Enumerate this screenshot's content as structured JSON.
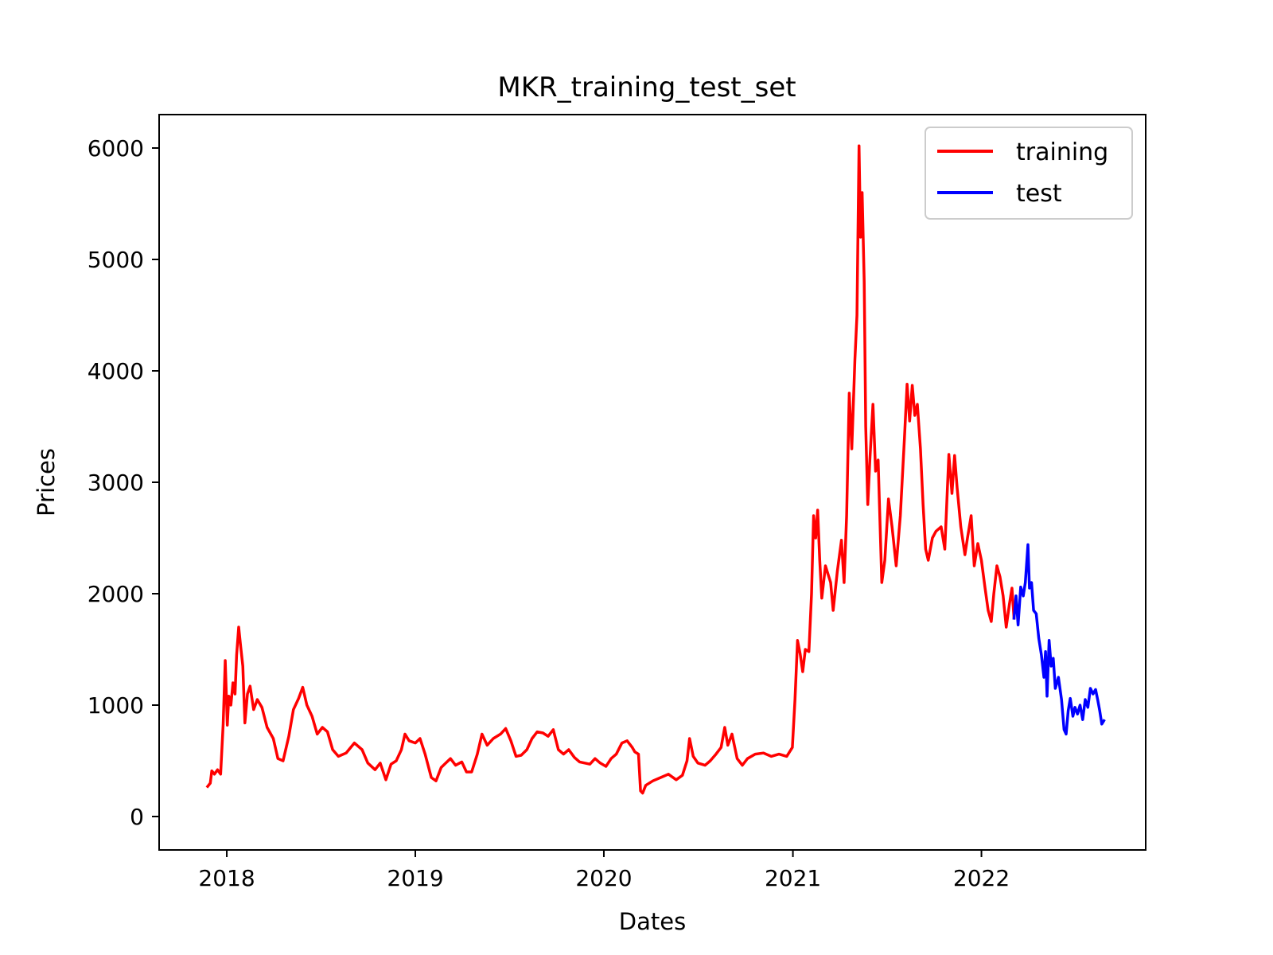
{
  "chart_data": {
    "type": "line",
    "title": "MKR_training_test_set",
    "xlabel": "Dates",
    "ylabel": "Prices",
    "xlim": [
      "2017-08-23",
      "2022-11-15"
    ],
    "ylim": [
      -300,
      6300
    ],
    "x_ticks": [
      {
        "date": "2018-01-01",
        "label": "2018"
      },
      {
        "date": "2019-01-01",
        "label": "2019"
      },
      {
        "date": "2020-01-01",
        "label": "2020"
      },
      {
        "date": "2021-01-01",
        "label": "2021"
      },
      {
        "date": "2022-01-01",
        "label": "2022"
      }
    ],
    "y_ticks": [
      {
        "value": 0,
        "label": "0"
      },
      {
        "value": 1000,
        "label": "1000"
      },
      {
        "value": 2000,
        "label": "2000"
      },
      {
        "value": 3000,
        "label": "3000"
      },
      {
        "value": 4000,
        "label": "4000"
      },
      {
        "value": 5000,
        "label": "5000"
      },
      {
        "value": 6000,
        "label": "6000"
      }
    ],
    "grid": false,
    "legend_position": "top-right",
    "series": [
      {
        "name": "training",
        "color": "#ff0000",
        "points": [
          [
            "2017-11-25",
            270
          ],
          [
            "2017-11-30",
            300
          ],
          [
            "2017-12-03",
            410
          ],
          [
            "2017-12-08",
            380
          ],
          [
            "2017-12-14",
            420
          ],
          [
            "2017-12-20",
            380
          ],
          [
            "2017-12-25",
            830
          ],
          [
            "2017-12-29",
            1400
          ],
          [
            "2018-01-02",
            820
          ],
          [
            "2018-01-05",
            1080
          ],
          [
            "2018-01-09",
            1000
          ],
          [
            "2018-01-13",
            1200
          ],
          [
            "2018-01-17",
            1100
          ],
          [
            "2018-01-20",
            1450
          ],
          [
            "2018-01-24",
            1700
          ],
          [
            "2018-01-28",
            1520
          ],
          [
            "2018-02-01",
            1350
          ],
          [
            "2018-02-05",
            840
          ],
          [
            "2018-02-10",
            1100
          ],
          [
            "2018-02-15",
            1170
          ],
          [
            "2018-02-22",
            960
          ],
          [
            "2018-03-01",
            1050
          ],
          [
            "2018-03-10",
            980
          ],
          [
            "2018-03-20",
            800
          ],
          [
            "2018-04-01",
            700
          ],
          [
            "2018-04-10",
            520
          ],
          [
            "2018-04-20",
            500
          ],
          [
            "2018-05-01",
            720
          ],
          [
            "2018-05-10",
            960
          ],
          [
            "2018-05-20",
            1060
          ],
          [
            "2018-05-28",
            1160
          ],
          [
            "2018-06-05",
            1000
          ],
          [
            "2018-06-15",
            900
          ],
          [
            "2018-06-25",
            740
          ],
          [
            "2018-07-05",
            800
          ],
          [
            "2018-07-15",
            760
          ],
          [
            "2018-07-25",
            600
          ],
          [
            "2018-08-05",
            540
          ],
          [
            "2018-08-20",
            570
          ],
          [
            "2018-09-05",
            660
          ],
          [
            "2018-09-20",
            600
          ],
          [
            "2018-10-01",
            480
          ],
          [
            "2018-10-15",
            420
          ],
          [
            "2018-10-25",
            480
          ],
          [
            "2018-11-05",
            330
          ],
          [
            "2018-11-15",
            470
          ],
          [
            "2018-11-25",
            500
          ],
          [
            "2018-12-05",
            600
          ],
          [
            "2018-12-12",
            740
          ],
          [
            "2018-12-20",
            680
          ],
          [
            "2019-01-01",
            660
          ],
          [
            "2019-01-10",
            700
          ],
          [
            "2019-01-20",
            560
          ],
          [
            "2019-02-01",
            350
          ],
          [
            "2019-02-10",
            320
          ],
          [
            "2019-02-20",
            440
          ],
          [
            "2019-03-01",
            480
          ],
          [
            "2019-03-10",
            520
          ],
          [
            "2019-03-20",
            460
          ],
          [
            "2019-04-01",
            490
          ],
          [
            "2019-04-10",
            400
          ],
          [
            "2019-04-20",
            400
          ],
          [
            "2019-05-01",
            560
          ],
          [
            "2019-05-10",
            740
          ],
          [
            "2019-05-20",
            640
          ],
          [
            "2019-06-01",
            700
          ],
          [
            "2019-06-15",
            740
          ],
          [
            "2019-06-25",
            790
          ],
          [
            "2019-07-05",
            680
          ],
          [
            "2019-07-15",
            540
          ],
          [
            "2019-07-25",
            550
          ],
          [
            "2019-08-05",
            600
          ],
          [
            "2019-08-15",
            700
          ],
          [
            "2019-08-25",
            760
          ],
          [
            "2019-09-05",
            750
          ],
          [
            "2019-09-15",
            720
          ],
          [
            "2019-09-25",
            780
          ],
          [
            "2019-10-05",
            600
          ],
          [
            "2019-10-15",
            560
          ],
          [
            "2019-10-25",
            600
          ],
          [
            "2019-11-05",
            530
          ],
          [
            "2019-11-15",
            490
          ],
          [
            "2019-11-25",
            480
          ],
          [
            "2019-12-05",
            470
          ],
          [
            "2019-12-15",
            520
          ],
          [
            "2019-12-25",
            480
          ],
          [
            "2020-01-05",
            450
          ],
          [
            "2020-01-15",
            520
          ],
          [
            "2020-01-25",
            560
          ],
          [
            "2020-02-05",
            660
          ],
          [
            "2020-02-15",
            680
          ],
          [
            "2020-02-25",
            620
          ],
          [
            "2020-03-01",
            580
          ],
          [
            "2020-03-08",
            560
          ],
          [
            "2020-03-12",
            230
          ],
          [
            "2020-03-16",
            210
          ],
          [
            "2020-03-22",
            280
          ],
          [
            "2020-04-05",
            320
          ],
          [
            "2020-04-20",
            350
          ],
          [
            "2020-05-05",
            380
          ],
          [
            "2020-05-20",
            330
          ],
          [
            "2020-06-01",
            370
          ],
          [
            "2020-06-10",
            500
          ],
          [
            "2020-06-15",
            700
          ],
          [
            "2020-06-22",
            540
          ],
          [
            "2020-07-01",
            480
          ],
          [
            "2020-07-15",
            460
          ],
          [
            "2020-07-25",
            500
          ],
          [
            "2020-08-05",
            560
          ],
          [
            "2020-08-15",
            620
          ],
          [
            "2020-08-22",
            800
          ],
          [
            "2020-08-28",
            640
          ],
          [
            "2020-09-05",
            740
          ],
          [
            "2020-09-15",
            520
          ],
          [
            "2020-09-25",
            460
          ],
          [
            "2020-10-05",
            520
          ],
          [
            "2020-10-20",
            560
          ],
          [
            "2020-11-05",
            570
          ],
          [
            "2020-11-20",
            540
          ],
          [
            "2020-12-05",
            560
          ],
          [
            "2020-12-20",
            540
          ],
          [
            "2020-12-31",
            620
          ],
          [
            "2021-01-05",
            1050
          ],
          [
            "2021-01-10",
            1580
          ],
          [
            "2021-01-15",
            1460
          ],
          [
            "2021-01-20",
            1300
          ],
          [
            "2021-01-25",
            1500
          ],
          [
            "2021-02-01",
            1480
          ],
          [
            "2021-02-06",
            2000
          ],
          [
            "2021-02-10",
            2700
          ],
          [
            "2021-02-14",
            2500
          ],
          [
            "2021-02-18",
            2750
          ],
          [
            "2021-02-22",
            2300
          ],
          [
            "2021-02-26",
            1960
          ],
          [
            "2021-03-05",
            2250
          ],
          [
            "2021-03-15",
            2100
          ],
          [
            "2021-03-20",
            1850
          ],
          [
            "2021-03-28",
            2200
          ],
          [
            "2021-04-05",
            2480
          ],
          [
            "2021-04-10",
            2100
          ],
          [
            "2021-04-15",
            2700
          ],
          [
            "2021-04-20",
            3800
          ],
          [
            "2021-04-25",
            3300
          ],
          [
            "2021-05-01",
            4100
          ],
          [
            "2021-05-05",
            4500
          ],
          [
            "2021-05-09",
            6020
          ],
          [
            "2021-05-12",
            5200
          ],
          [
            "2021-05-15",
            5600
          ],
          [
            "2021-05-19",
            4800
          ],
          [
            "2021-05-22",
            3500
          ],
          [
            "2021-05-26",
            2800
          ],
          [
            "2021-05-30",
            3200
          ],
          [
            "2021-06-05",
            3700
          ],
          [
            "2021-06-10",
            3100
          ],
          [
            "2021-06-15",
            3200
          ],
          [
            "2021-06-22",
            2100
          ],
          [
            "2021-06-28",
            2300
          ],
          [
            "2021-07-05",
            2850
          ],
          [
            "2021-07-12",
            2600
          ],
          [
            "2021-07-20",
            2250
          ],
          [
            "2021-07-28",
            2700
          ],
          [
            "2021-08-05",
            3400
          ],
          [
            "2021-08-10",
            3880
          ],
          [
            "2021-08-15",
            3550
          ],
          [
            "2021-08-20",
            3870
          ],
          [
            "2021-08-25",
            3600
          ],
          [
            "2021-08-30",
            3700
          ],
          [
            "2021-09-05",
            3300
          ],
          [
            "2021-09-10",
            2800
          ],
          [
            "2021-09-15",
            2400
          ],
          [
            "2021-09-20",
            2300
          ],
          [
            "2021-09-28",
            2500
          ],
          [
            "2021-10-05",
            2560
          ],
          [
            "2021-10-15",
            2600
          ],
          [
            "2021-10-22",
            2400
          ],
          [
            "2021-10-30",
            3250
          ],
          [
            "2021-11-05",
            2900
          ],
          [
            "2021-11-10",
            3240
          ],
          [
            "2021-11-15",
            2950
          ],
          [
            "2021-11-22",
            2600
          ],
          [
            "2021-11-30",
            2350
          ],
          [
            "2021-12-05",
            2500
          ],
          [
            "2021-12-12",
            2700
          ],
          [
            "2021-12-18",
            2250
          ],
          [
            "2021-12-25",
            2450
          ],
          [
            "2022-01-01",
            2300
          ],
          [
            "2022-01-08",
            2050
          ],
          [
            "2022-01-14",
            1850
          ],
          [
            "2022-01-20",
            1750
          ],
          [
            "2022-01-25",
            2000
          ],
          [
            "2022-01-31",
            2250
          ],
          [
            "2022-02-06",
            2150
          ],
          [
            "2022-02-12",
            1980
          ],
          [
            "2022-02-18",
            1700
          ],
          [
            "2022-02-24",
            1900
          ],
          [
            "2022-03-01",
            2050
          ],
          [
            "2022-03-05",
            1780
          ]
        ]
      },
      {
        "name": "test",
        "color": "#0000ff",
        "points": [
          [
            "2022-03-05",
            1780
          ],
          [
            "2022-03-09",
            1980
          ],
          [
            "2022-03-13",
            1720
          ],
          [
            "2022-03-18",
            2060
          ],
          [
            "2022-03-23",
            1980
          ],
          [
            "2022-03-27",
            2100
          ],
          [
            "2022-04-01",
            2440
          ],
          [
            "2022-04-04",
            2050
          ],
          [
            "2022-04-08",
            2100
          ],
          [
            "2022-04-12",
            1850
          ],
          [
            "2022-04-17",
            1820
          ],
          [
            "2022-04-22",
            1600
          ],
          [
            "2022-04-27",
            1450
          ],
          [
            "2022-05-02",
            1250
          ],
          [
            "2022-05-05",
            1480
          ],
          [
            "2022-05-08",
            1080
          ],
          [
            "2022-05-12",
            1580
          ],
          [
            "2022-05-16",
            1350
          ],
          [
            "2022-05-20",
            1420
          ],
          [
            "2022-05-24",
            1150
          ],
          [
            "2022-05-30",
            1250
          ],
          [
            "2022-06-05",
            1050
          ],
          [
            "2022-06-10",
            780
          ],
          [
            "2022-06-14",
            740
          ],
          [
            "2022-06-18",
            950
          ],
          [
            "2022-06-22",
            1060
          ],
          [
            "2022-06-27",
            900
          ],
          [
            "2022-07-01",
            980
          ],
          [
            "2022-07-06",
            920
          ],
          [
            "2022-07-11",
            1000
          ],
          [
            "2022-07-16",
            870
          ],
          [
            "2022-07-21",
            1050
          ],
          [
            "2022-07-26",
            980
          ],
          [
            "2022-07-31",
            1150
          ],
          [
            "2022-08-05",
            1100
          ],
          [
            "2022-08-10",
            1140
          ],
          [
            "2022-08-14",
            1050
          ],
          [
            "2022-08-18",
            950
          ],
          [
            "2022-08-22",
            830
          ],
          [
            "2022-08-26",
            860
          ]
        ]
      }
    ]
  }
}
